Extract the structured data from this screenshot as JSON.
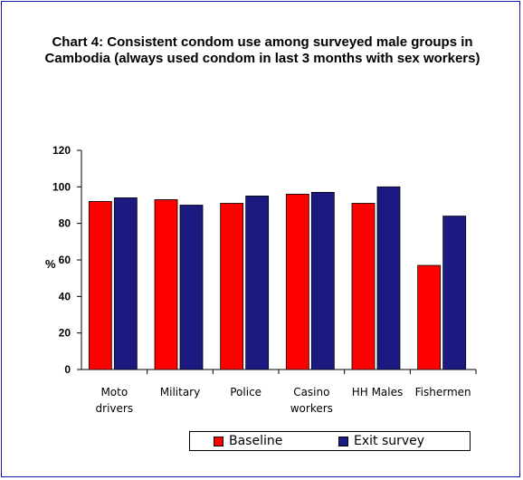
{
  "chart_data": {
    "type": "bar",
    "title": "Chart 4: Consistent condom use among surveyed male groups in Cambodia (always used condom in last 3 months with sex workers)",
    "ylabel": "%",
    "xlabel": "",
    "ylim": [
      0,
      120
    ],
    "yticks": [
      "0",
      "20",
      "40",
      "60",
      "80",
      "100",
      "120"
    ],
    "categories": [
      [
        "Moto",
        "drivers"
      ],
      [
        "Military"
      ],
      [
        "Police"
      ],
      [
        "Casino",
        "workers"
      ],
      [
        "HH Males"
      ],
      [
        "Fishermen"
      ]
    ],
    "series": [
      {
        "name": "Baseline",
        "color": "#ff0000",
        "values": [
          92,
          93,
          91,
          96,
          91,
          57
        ]
      },
      {
        "name": "Exit survey",
        "color": "#1a1a80",
        "values": [
          94,
          90,
          95,
          97,
          100,
          84
        ]
      }
    ],
    "legend_position": "bottom",
    "grid": false
  }
}
